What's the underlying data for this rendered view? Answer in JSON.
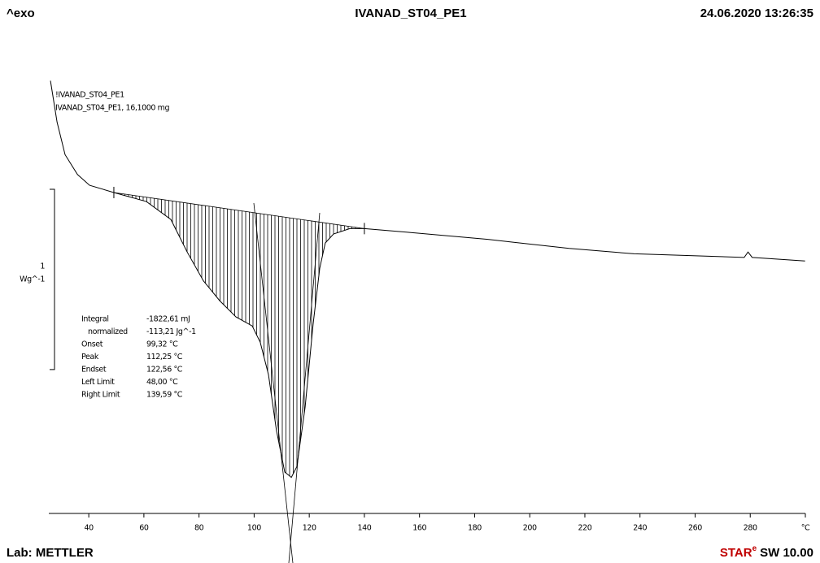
{
  "header": {
    "left": "^exo",
    "title": "IVANAD_ST04_PE1",
    "date": "24.06.2020 13:26:35"
  },
  "footer": {
    "lab": "Lab: METTLER",
    "star": "STAR",
    "star_e": "e",
    "version": "SW 10.00"
  },
  "chart_data": {
    "type": "line",
    "sample_title": "!IVANAD_ST04_PE1",
    "xlim": [
      25.5,
      300
    ],
    "xticks": [
      40,
      60,
      80,
      100,
      120,
      140,
      160,
      180,
      200,
      220,
      240,
      260,
      280,
      {
        "value": 300,
        "label": "°C"
      }
    ],
    "ylim": [
      0,
      2.69
    ],
    "scale_bar": {
      "value": 1,
      "unit": "Wg^-1"
    },
    "x": [
      26.1,
      28.5,
      31.4,
      35.9,
      40.3,
      49.1,
      60.9,
      69.8,
      75.7,
      81.6,
      87.5,
      93.4,
      99.3,
      102.2,
      105.2,
      108.1,
      111.1,
      113.5,
      115.5,
      118.5,
      121.4,
      123.8,
      125.8,
      128.8,
      134.7,
      140.0,
      155.3,
      184.8,
      214.3,
      237.9,
      277.8,
      279.2,
      280.7,
      299.9
    ],
    "series": [
      {
        "name": "IVANAD_ST04_PE1, 16,1000 mg",
        "color": "#000000",
        "values": [
          2.4,
          2.17,
          1.99,
          1.88,
          1.82,
          1.78,
          1.73,
          1.63,
          1.45,
          1.29,
          1.18,
          1.09,
          1.04,
          0.95,
          0.77,
          0.46,
          0.23,
          0.2,
          0.26,
          0.59,
          1.05,
          1.36,
          1.5,
          1.55,
          1.58,
          1.58,
          1.56,
          1.52,
          1.47,
          1.44,
          1.42,
          1.45,
          1.42,
          1.4
        ]
      }
    ],
    "results": [
      {
        "label": "Integral",
        "value": "-1822,61 mJ"
      },
      {
        "label": "normalized",
        "value": "-113,21 Jg^-1"
      },
      {
        "label": "Onset",
        "value": "99,32 °C"
      },
      {
        "label": "Peak",
        "value": "112,25 °C"
      },
      {
        "label": "Endset",
        "value": "122,56 °C"
      },
      {
        "label": "Left Limit",
        "value": "48,00 °C"
      },
      {
        "label": "Right Limit",
        "value": "139,59 °C"
      }
    ]
  }
}
